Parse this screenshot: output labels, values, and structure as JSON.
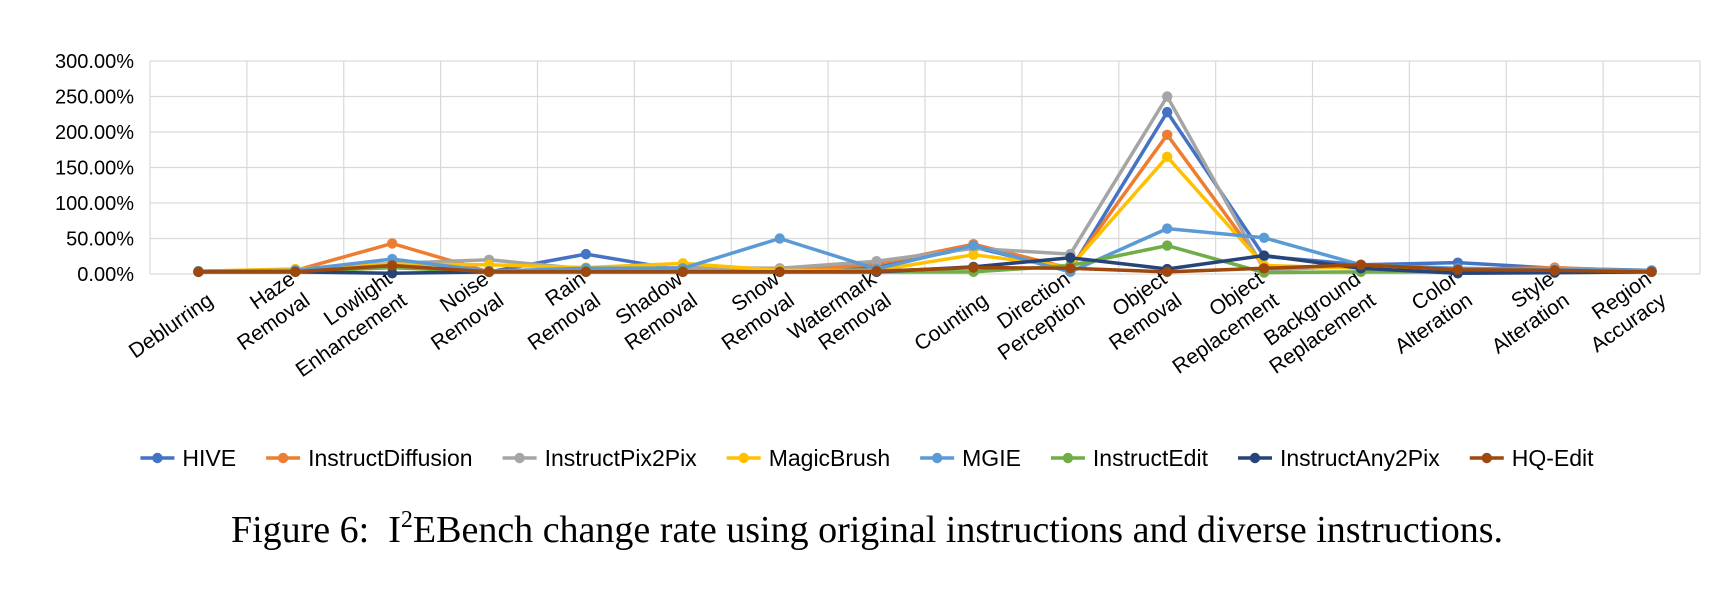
{
  "chart_data": {
    "type": "line",
    "categories": [
      [
        "Deblurring"
      ],
      [
        "Haze",
        "Removal"
      ],
      [
        "Lowlight",
        "Enhancement"
      ],
      [
        "Noise",
        "Removal"
      ],
      [
        "Rain",
        "Removal"
      ],
      [
        "Shadow",
        "Removal"
      ],
      [
        "Snow",
        "Removal"
      ],
      [
        "Watermark",
        "Removal"
      ],
      [
        "Counting"
      ],
      [
        "Direction",
        "Perception"
      ],
      [
        "Object",
        "Removal"
      ],
      [
        "Object",
        "Replacement"
      ],
      [
        "Background",
        "Replacement"
      ],
      [
        "Color",
        "Alteration"
      ],
      [
        "Style",
        "Alteration"
      ],
      [
        "Region",
        "Accuracy"
      ]
    ],
    "yticks": [
      "0.00%",
      "50.00%",
      "100.00%",
      "150.00%",
      "200.00%",
      "250.00%",
      "300.00%"
    ],
    "ylim": [
      0,
      300
    ],
    "grid": true,
    "legend_position": "bottom",
    "series": [
      {
        "name": "HIVE",
        "color": "#4472C4",
        "values": [
          3,
          4,
          12,
          3,
          28,
          5,
          5,
          10,
          38,
          5,
          228,
          25,
          13,
          16,
          8,
          5
        ]
      },
      {
        "name": "InstructDiffusion",
        "color": "#ED7D31",
        "values": [
          4,
          5,
          43,
          3,
          7,
          6,
          4,
          14,
          42,
          8,
          196,
          10,
          9,
          6,
          9,
          4
        ]
      },
      {
        "name": "InstructPix2Pix",
        "color": "#A5A5A5",
        "values": [
          4,
          6,
          15,
          20,
          7,
          9,
          8,
          18,
          36,
          28,
          250,
          6,
          11,
          5,
          7,
          4
        ]
      },
      {
        "name": "MagicBrush",
        "color": "#FFC000",
        "values": [
          4,
          7,
          14,
          13,
          9,
          15,
          5,
          5,
          27,
          10,
          165,
          12,
          8,
          4,
          5,
          3
        ]
      },
      {
        "name": "MGIE",
        "color": "#5B9BD5",
        "values": [
          4,
          5,
          21,
          4,
          8,
          8,
          50,
          7,
          40,
          3,
          64,
          51,
          13,
          8,
          6,
          5
        ]
      },
      {
        "name": "InstructEdit",
        "color": "#70AD47",
        "values": [
          3,
          3,
          9,
          3,
          4,
          4,
          3,
          3,
          3,
          12,
          40,
          2,
          3,
          3,
          2,
          3
        ]
      },
      {
        "name": "InstructAny2Pix",
        "color": "#264478",
        "values": [
          3,
          3,
          1,
          3,
          3,
          3,
          3,
          3,
          10,
          23,
          7,
          26,
          8,
          1,
          2,
          3
        ]
      },
      {
        "name": "HQ-Edit",
        "color": "#9E480E",
        "values": [
          3,
          3,
          12,
          3,
          3,
          3,
          3,
          4,
          9,
          8,
          3,
          8,
          13,
          6,
          5,
          3
        ]
      }
    ]
  },
  "caption": {
    "prefix": "Figure 6:",
    "name_base": "I",
    "name_sup": "2",
    "name_rest": "EBench",
    "text": "change rate using original instructions and diverse instructions."
  }
}
